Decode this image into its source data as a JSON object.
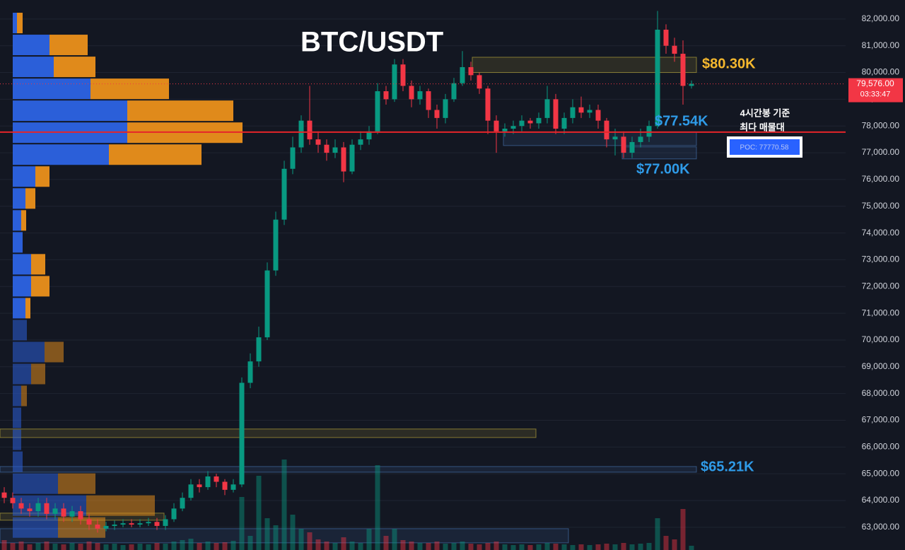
{
  "chart_data": {
    "type": "candlestick",
    "title": "BTC/USDT",
    "open": [
      64300,
      64100,
      63900,
      63700,
      63600,
      63900,
      63500,
      63700,
      63400,
      63600,
      63300,
      63100,
      62950,
      63050,
      63100,
      63150,
      63100,
      63150,
      63200,
      63050,
      63300,
      63700,
      64100,
      64600,
      64500,
      64900,
      64700,
      64400,
      64600,
      68400,
      69200,
      70100,
      72600,
      74500,
      76400,
      77200,
      78200,
      77500,
      77300,
      77000,
      77200,
      76300,
      77300,
      77500,
      77800,
      79300,
      79000,
      80300,
      79500,
      79000,
      79300,
      78600,
      78300,
      79000,
      79600,
      80200,
      79900,
      79400,
      78200,
      77800,
      77900,
      78000,
      78200,
      78100,
      78300,
      79000,
      77900,
      78300,
      78700,
      78500,
      78600,
      78200,
      77500,
      77600,
      77000,
      77400,
      77600,
      78000,
      81600,
      81000,
      80700,
      79500
    ],
    "high": [
      64500,
      64300,
      64100,
      63900,
      64100,
      64100,
      63900,
      63900,
      63800,
      63800,
      63500,
      63300,
      63200,
      63250,
      63300,
      63300,
      63300,
      63350,
      63350,
      63450,
      63900,
      64300,
      64800,
      64800,
      65100,
      65000,
      64800,
      64800,
      68600,
      69500,
      70500,
      72900,
      74800,
      76700,
      77600,
      78400,
      79500,
      77800,
      77500,
      77500,
      77400,
      77500,
      77800,
      78000,
      79600,
      79500,
      80500,
      80500,
      79700,
      79500,
      79400,
      78800,
      79200,
      79800,
      80800,
      80400,
      80000,
      79500,
      78400,
      78100,
      78200,
      78400,
      78300,
      78500,
      79500,
      79200,
      78500,
      79000,
      79100,
      78800,
      78800,
      78300,
      77900,
      77800,
      77600,
      77900,
      78200,
      82300,
      81800,
      81300,
      81200,
      79700
    ],
    "low": [
      63900,
      63700,
      63500,
      63400,
      63400,
      63300,
      63300,
      63200,
      63200,
      63100,
      62900,
      62800,
      62850,
      62900,
      63000,
      63000,
      63000,
      63050,
      62900,
      62900,
      63200,
      63600,
      64000,
      64300,
      64400,
      64500,
      64200,
      64300,
      64500,
      68200,
      69000,
      70000,
      72400,
      74300,
      76200,
      77000,
      77300,
      77000,
      76700,
      76800,
      75900,
      76200,
      77100,
      77300,
      77700,
      78800,
      78900,
      79300,
      78700,
      78800,
      78300,
      77900,
      78100,
      78900,
      79500,
      79700,
      79200,
      77700,
      77000,
      77600,
      77700,
      77800,
      77900,
      77900,
      78100,
      77700,
      77700,
      78100,
      78300,
      78300,
      77900,
      77200,
      76900,
      76800,
      76800,
      77200,
      77400,
      77900,
      80700,
      80400,
      78800,
      79400
    ],
    "close": [
      64100,
      63900,
      63700,
      63600,
      63900,
      63500,
      63700,
      63400,
      63600,
      63300,
      63100,
      62950,
      63050,
      63100,
      63150,
      63100,
      63150,
      63200,
      63050,
      63300,
      63700,
      64100,
      64600,
      64500,
      64900,
      64700,
      64400,
      64600,
      68400,
      69200,
      70100,
      72600,
      74500,
      76400,
      77200,
      78200,
      77500,
      77300,
      77000,
      77200,
      76300,
      77300,
      77500,
      77800,
      79300,
      79000,
      80300,
      79500,
      79000,
      79300,
      78600,
      78300,
      79000,
      79600,
      80200,
      79900,
      79400,
      78200,
      77800,
      77900,
      78000,
      78200,
      78100,
      78300,
      79000,
      77900,
      78300,
      78700,
      78500,
      78600,
      78200,
      77500,
      77600,
      77000,
      77400,
      77600,
      78000,
      81600,
      81000,
      80700,
      79500,
      79576
    ],
    "volume": [
      14,
      10,
      12,
      8,
      10,
      12,
      9,
      8,
      10,
      9,
      12,
      10,
      8,
      9,
      7,
      8,
      9,
      8,
      10,
      9,
      12,
      14,
      16,
      10,
      12,
      10,
      11,
      13,
      75,
      20,
      105,
      45,
      35,
      128,
      50,
      30,
      25,
      15,
      12,
      10,
      18,
      12,
      10,
      30,
      120,
      20,
      30,
      14,
      12,
      10,
      10,
      12,
      9,
      10,
      12,
      9,
      8,
      10,
      12,
      8,
      7,
      8,
      7,
      8,
      10,
      9,
      8,
      7,
      8,
      7,
      8,
      9,
      8,
      10,
      8,
      9,
      10,
      45,
      20,
      15,
      58,
      6
    ],
    "up_color": "#089981",
    "down_color": "#f23645",
    "ylim": [
      62150,
      82710
    ],
    "yticks": [
      {
        "value": 63000,
        "label": "63,000.00"
      },
      {
        "value": 64000,
        "label": "64,000.00"
      },
      {
        "value": 65000,
        "label": "65,000.00"
      },
      {
        "value": 66000,
        "label": "66,000.00"
      },
      {
        "value": 67000,
        "label": "67,000.00"
      },
      {
        "value": 68000,
        "label": "68,000.00"
      },
      {
        "value": 69000,
        "label": "69,000.00"
      },
      {
        "value": 70000,
        "label": "70,000.00"
      },
      {
        "value": 71000,
        "label": "71,000.00"
      },
      {
        "value": 72000,
        "label": "72,000.00"
      },
      {
        "value": 73000,
        "label": "73,000.00"
      },
      {
        "value": 74000,
        "label": "74,000.00"
      },
      {
        "value": 75000,
        "label": "75,000.00"
      },
      {
        "value": 76000,
        "label": "76,000.00"
      },
      {
        "value": 77000,
        "label": "77,000.00"
      },
      {
        "value": 78000,
        "label": "78,000.00"
      },
      {
        "value": 79000,
        "label": "79,000.00"
      },
      {
        "value": 80000,
        "label": "80,000.00"
      },
      {
        "value": 81000,
        "label": "81,000.00"
      },
      {
        "value": 82000,
        "label": "82,000.00"
      }
    ],
    "grid": true,
    "last_price": {
      "value": 79576,
      "label": "79,576.00"
    },
    "countdown": "03:33:47",
    "poc": {
      "value": 77770.58,
      "label": "POC: 77770.58",
      "color": "#e5252a"
    },
    "annotation": [
      "4시간봉 기준",
      "최다 매물대"
    ],
    "zones": [
      {
        "low": 80000,
        "high": 80570,
        "color": "#c8b43c",
        "label": "$80.30K",
        "label_color": "#f5b82e"
      },
      {
        "low": 77270,
        "high": 77770,
        "color": "#4a78b8",
        "label": "$77.54K",
        "label_color": "#2f9be8"
      },
      {
        "low": 76770,
        "high": 77220,
        "color": "#4a78b8",
        "label": "$77.00K",
        "label_color": "#2f9be8"
      },
      {
        "low": 65060,
        "high": 65270,
        "color": "#4a78b8",
        "label": "$65.21K",
        "label_color": "#2f9be8"
      },
      {
        "low": 66355,
        "high": 66673,
        "color": "#c8b43c"
      },
      {
        "low": 63264,
        "high": 63528,
        "color": "#c8b43c"
      },
      {
        "low": 62418,
        "high": 62946,
        "color": "#4a78b8"
      }
    ],
    "volume_profile": {
      "bins": [
        82260,
        81440,
        80620,
        79800,
        78980,
        78160,
        77340,
        76520,
        75700,
        74880,
        74060,
        73240,
        72420,
        71600,
        70780,
        69960,
        69140,
        68320,
        67500,
        66680,
        65860,
        65040,
        64220,
        63400,
        62580
      ],
      "up": [
        6,
        52,
        58,
        110,
        162,
        162,
        136,
        32,
        18,
        12,
        14,
        26,
        26,
        18,
        20,
        45,
        26,
        12,
        12,
        12,
        14,
        64,
        104,
        64
      ],
      "down": [
        8,
        54,
        59,
        111,
        150,
        163,
        131,
        20,
        14,
        7,
        0,
        20,
        26,
        7,
        0,
        27,
        20,
        8,
        0,
        0,
        0,
        53,
        97,
        67
      ],
      "up_color": "#2b5fd9",
      "down_color": "#e08a1b"
    }
  }
}
